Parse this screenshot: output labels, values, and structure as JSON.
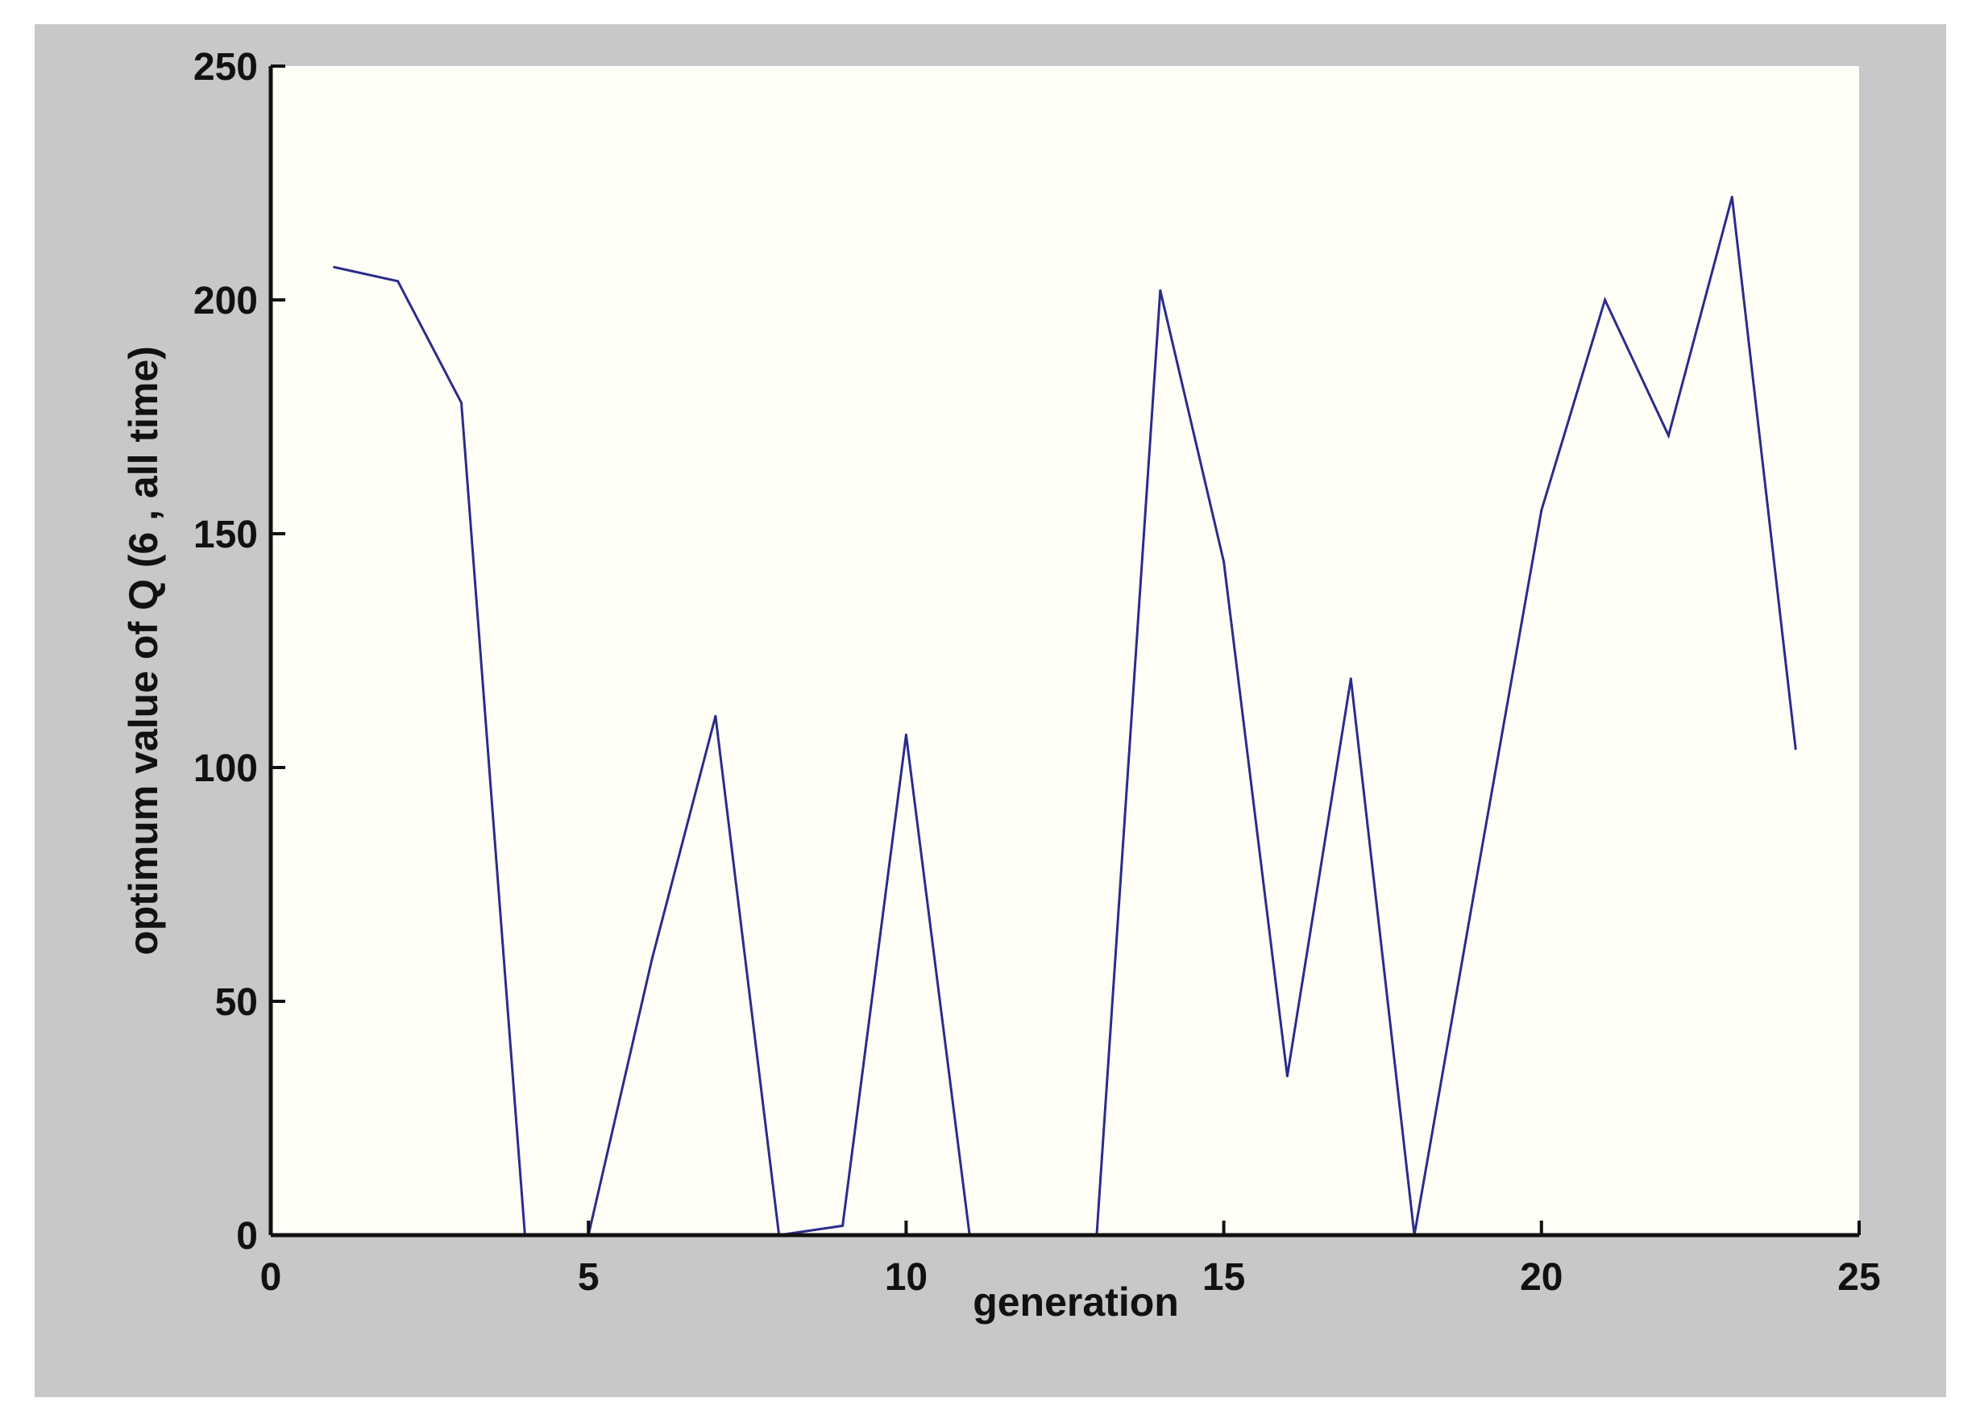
{
  "chart_data": {
    "type": "line",
    "title": "",
    "xlabel": "generation",
    "ylabel": "optimum value of Q (6 , all time)",
    "xlim": [
      0,
      25
    ],
    "ylim": [
      0,
      250
    ],
    "xticks": [
      0,
      5,
      10,
      15,
      20,
      25
    ],
    "yticks": [
      0,
      50,
      100,
      150,
      200,
      250
    ],
    "grid": false,
    "legend": "none",
    "colors": {
      "figure_background": "#c8c8c8",
      "plot_background": "#fffff8",
      "line": "#2b2b8c",
      "axis": "#111111"
    },
    "series": [
      {
        "x": [
          1,
          2,
          3,
          4,
          5,
          6,
          7,
          8,
          9,
          10,
          11,
          12,
          13,
          14,
          15,
          16,
          17,
          18,
          19,
          20,
          21,
          22,
          23,
          24
        ],
        "values": [
          207,
          204,
          178,
          0,
          0,
          59,
          111,
          0,
          2,
          107,
          0,
          0,
          0,
          202,
          144,
          34,
          119,
          0,
          78,
          155,
          200,
          171,
          222,
          104
        ]
      }
    ]
  }
}
